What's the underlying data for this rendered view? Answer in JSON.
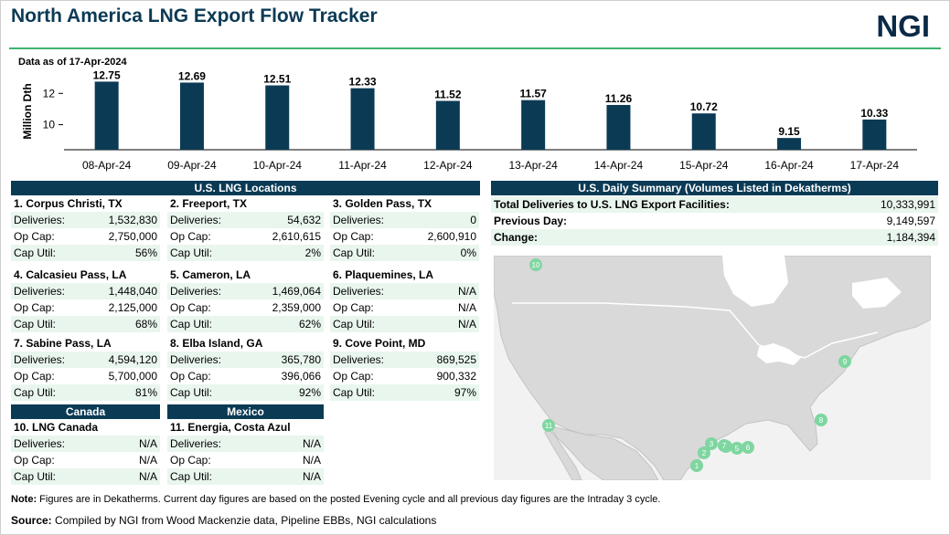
{
  "header": {
    "title": "North America LNG Export Flow Tracker",
    "logo": "NGI",
    "as_of": "Data as of 17-Apr-2024"
  },
  "chart_data": {
    "type": "bar",
    "categories": [
      "08-Apr-24",
      "09-Apr-24",
      "10-Apr-24",
      "11-Apr-24",
      "12-Apr-24",
      "13-Apr-24",
      "14-Apr-24",
      "15-Apr-24",
      "16-Apr-24",
      "17-Apr-24"
    ],
    "values": [
      12.75,
      12.69,
      12.51,
      12.33,
      11.52,
      11.57,
      11.26,
      10.72,
      9.15,
      10.33
    ],
    "data_labels": [
      "12.75",
      "12.69",
      "12.51",
      "12.33",
      "11.52",
      "11.57",
      "11.26",
      "10.72",
      "9.15",
      "10.33"
    ],
    "ylabel": "Million Dth",
    "yticks": [
      10,
      12
    ],
    "ytick_labels": [
      "10",
      "12"
    ],
    "ylim": [
      8.4,
      13.3
    ],
    "bar_color": "#0b3a55"
  },
  "us_locations": {
    "header": "U.S. LNG Locations",
    "field_labels": {
      "deliveries": "Deliveries:",
      "op_cap": "Op Cap:",
      "cap_util": "Cap Util:"
    },
    "facilities": [
      {
        "name": "1. Corpus Christi, TX",
        "deliveries": "1,532,830",
        "op_cap": "2,750,000",
        "cap_util": "56%"
      },
      {
        "name": "2. Freeport, TX",
        "deliveries": "54,632",
        "op_cap": "2,610,615",
        "cap_util": "2%"
      },
      {
        "name": "3. Golden Pass, TX",
        "deliveries": "0",
        "op_cap": "2,600,910",
        "cap_util": "0%"
      },
      {
        "name": "4. Calcasieu Pass, LA",
        "deliveries": "1,448,040",
        "op_cap": "2,125,000",
        "cap_util": "68%"
      },
      {
        "name": "5. Cameron, LA",
        "deliveries": "1,469,064",
        "op_cap": "2,359,000",
        "cap_util": "62%"
      },
      {
        "name": "6. Plaquemines, LA",
        "deliveries": "N/A",
        "op_cap": "N/A",
        "cap_util": "N/A"
      },
      {
        "name": "7. Sabine Pass, LA",
        "deliveries": "4,594,120",
        "op_cap": "5,700,000",
        "cap_util": "81%"
      },
      {
        "name": "8. Elba Island, GA",
        "deliveries": "365,780",
        "op_cap": "396,066",
        "cap_util": "92%"
      },
      {
        "name": "9. Cove Point, MD",
        "deliveries": "869,525",
        "op_cap": "900,332",
        "cap_util": "97%"
      }
    ]
  },
  "canada": {
    "header": "Canada",
    "facilities": [
      {
        "name": "10. LNG Canada",
        "deliveries": "N/A",
        "op_cap": "N/A",
        "cap_util": "N/A"
      }
    ]
  },
  "mexico": {
    "header": "Mexico",
    "facilities": [
      {
        "name": "11. Energia, Costa Azul",
        "deliveries": "N/A",
        "op_cap": "N/A",
        "cap_util": "N/A"
      }
    ]
  },
  "summary": {
    "header": "U.S. Daily Summary (Volumes Listed in Dekatherms)",
    "rows": [
      {
        "label": "Total Deliveries to U.S. LNG Export Facilities:",
        "value": "10,333,991"
      },
      {
        "label": "Previous Day:",
        "value": "9,149,597"
      },
      {
        "label": "Change:",
        "value": "1,184,394"
      }
    ]
  },
  "map": {
    "markers": [
      "1",
      "2",
      "3",
      "4",
      "5",
      "6",
      "7",
      "8",
      "9",
      "10",
      "11"
    ],
    "colors": {
      "water": "#ffffff",
      "land": "#d9d9d9",
      "land_edge": "#c4c4c4",
      "marker": "#7fd6a0"
    }
  },
  "footer": {
    "note_label": "Note:",
    "note_text": " Figures are in Dekatherms.  Current day figures are based on the posted Evening cycle and all previous day figures are the Intraday 3 cycle.",
    "source_label": "Source:",
    "source_text": "  Compiled by NGI from Wood Mackenzie data, Pipeline EBBs, NGI calculations"
  }
}
